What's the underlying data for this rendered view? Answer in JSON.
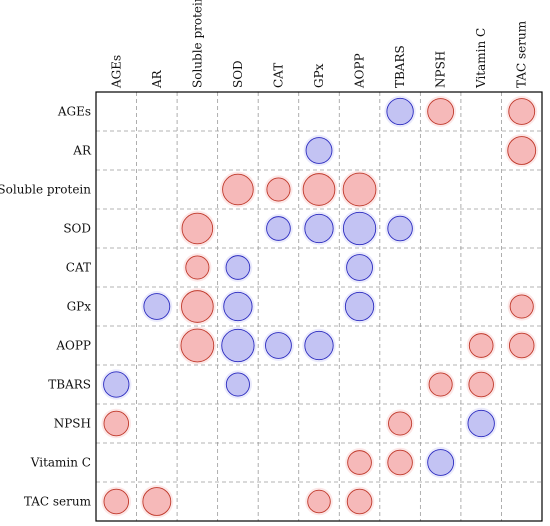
{
  "chart_data": {
    "type": "heatmap",
    "subtype": "bubble-correlation-matrix",
    "title": "",
    "xlabel": "",
    "ylabel": "",
    "columns": [
      "AGEs",
      "AR",
      "Soluble protein",
      "SOD",
      "CAT",
      "GPx",
      "AOPP",
      "TBARS",
      "NPSH",
      "Vitamin C",
      "TAC serum"
    ],
    "rows": [
      "AGEs",
      "AR",
      "Soluble protein",
      "SOD",
      "CAT",
      "GPx",
      "AOPP",
      "TBARS",
      "NPSH",
      "Vitamin C",
      "TAC serum"
    ],
    "value_range": [
      -1,
      1
    ],
    "grid": true,
    "grid_style": "dashed",
    "colors": {
      "positive_fill": "#f6b9b9",
      "positive_stroke": "#c0392b",
      "negative_fill": "#c3c3f3",
      "negative_stroke": "#2c2cc0",
      "grid": "#9a9a9a",
      "border": "#000000"
    },
    "cells": [
      {
        "row": "AGEs",
        "col": "TBARS",
        "value": -0.52
      },
      {
        "row": "AGEs",
        "col": "NPSH",
        "value": 0.5
      },
      {
        "row": "AGEs",
        "col": "TAC serum",
        "value": 0.5
      },
      {
        "row": "AR",
        "col": "GPx",
        "value": -0.5
      },
      {
        "row": "AR",
        "col": "TAC serum",
        "value": 0.58
      },
      {
        "row": "Soluble protein",
        "col": "SOD",
        "value": 0.7
      },
      {
        "row": "Soluble protein",
        "col": "CAT",
        "value": 0.4
      },
      {
        "row": "Soluble protein",
        "col": "GPx",
        "value": 0.75
      },
      {
        "row": "Soluble protein",
        "col": "AOPP",
        "value": 0.8
      },
      {
        "row": "SOD",
        "col": "Soluble protein",
        "value": 0.7
      },
      {
        "row": "SOD",
        "col": "CAT",
        "value": -0.42
      },
      {
        "row": "SOD",
        "col": "GPx",
        "value": -0.6
      },
      {
        "row": "SOD",
        "col": "AOPP",
        "value": -0.78
      },
      {
        "row": "SOD",
        "col": "TBARS",
        "value": -0.45
      },
      {
        "row": "CAT",
        "col": "Soluble protein",
        "value": 0.4
      },
      {
        "row": "CAT",
        "col": "SOD",
        "value": -0.42
      },
      {
        "row": "CAT",
        "col": "AOPP",
        "value": -0.5
      },
      {
        "row": "GPx",
        "col": "AR",
        "value": -0.5
      },
      {
        "row": "GPx",
        "col": "Soluble protein",
        "value": 0.75
      },
      {
        "row": "GPx",
        "col": "SOD",
        "value": -0.6
      },
      {
        "row": "GPx",
        "col": "AOPP",
        "value": -0.6
      },
      {
        "row": "GPx",
        "col": "TAC serum",
        "value": 0.4
      },
      {
        "row": "AOPP",
        "col": "Soluble protein",
        "value": 0.8
      },
      {
        "row": "AOPP",
        "col": "SOD",
        "value": -0.78
      },
      {
        "row": "AOPP",
        "col": "CAT",
        "value": -0.5
      },
      {
        "row": "AOPP",
        "col": "GPx",
        "value": -0.6
      },
      {
        "row": "AOPP",
        "col": "Vitamin C",
        "value": 0.42
      },
      {
        "row": "AOPP",
        "col": "TAC serum",
        "value": 0.45
      },
      {
        "row": "TBARS",
        "col": "AGEs",
        "value": -0.48
      },
      {
        "row": "TBARS",
        "col": "SOD",
        "value": -0.4
      },
      {
        "row": "TBARS",
        "col": "NPSH",
        "value": 0.4
      },
      {
        "row": "TBARS",
        "col": "Vitamin C",
        "value": 0.45
      },
      {
        "row": "NPSH",
        "col": "AGEs",
        "value": 0.45
      },
      {
        "row": "NPSH",
        "col": "TBARS",
        "value": 0.4
      },
      {
        "row": "NPSH",
        "col": "Vitamin C",
        "value": -0.52
      },
      {
        "row": "Vitamin C",
        "col": "AOPP",
        "value": 0.42
      },
      {
        "row": "Vitamin C",
        "col": "TBARS",
        "value": 0.45
      },
      {
        "row": "Vitamin C",
        "col": "NPSH",
        "value": -0.5
      },
      {
        "row": "TAC serum",
        "col": "AGEs",
        "value": 0.45
      },
      {
        "row": "TAC serum",
        "col": "AR",
        "value": 0.58
      },
      {
        "row": "TAC serum",
        "col": "GPx",
        "value": 0.38
      },
      {
        "row": "TAC serum",
        "col": "AOPP",
        "value": 0.45
      }
    ]
  }
}
